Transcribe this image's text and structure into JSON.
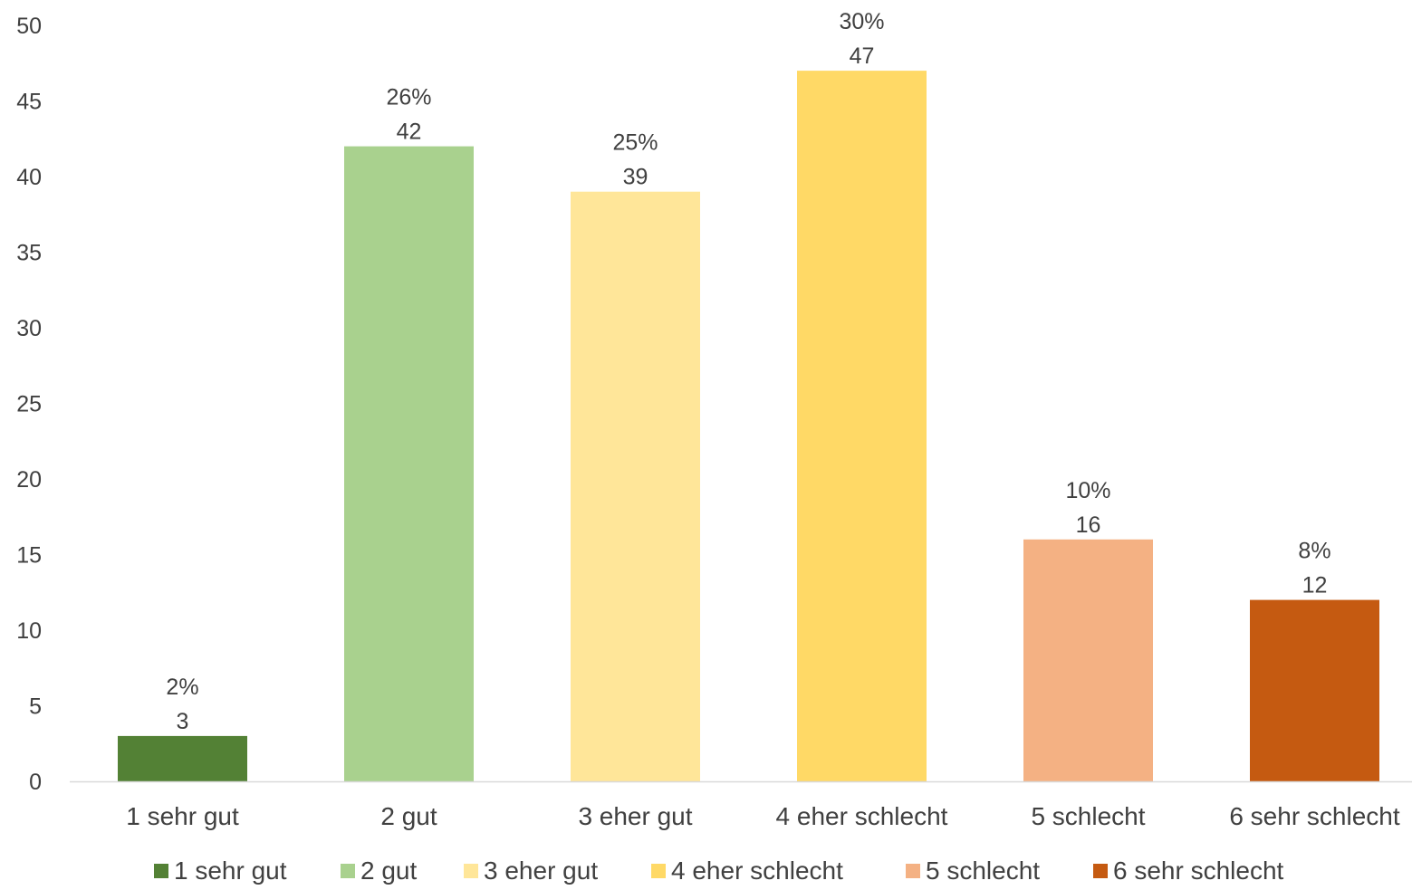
{
  "chart_data": {
    "type": "bar",
    "title": "",
    "xlabel": "",
    "ylabel": "",
    "ylim": [
      0,
      50
    ],
    "yticks": [
      0,
      5,
      10,
      15,
      20,
      25,
      30,
      35,
      40,
      45,
      50
    ],
    "categories": [
      "1 sehr gut",
      "2 gut",
      "3 eher gut",
      "4 eher schlecht",
      "5 schlecht",
      "6 sehr schlecht"
    ],
    "values": [
      3,
      42,
      39,
      47,
      16,
      12
    ],
    "percent_labels": [
      "2%",
      "26%",
      "25%",
      "30%",
      "10%",
      "8%"
    ],
    "colors": [
      "#538135",
      "#a9d18e",
      "#ffe699",
      "#ffd966",
      "#f4b183",
      "#c55a11"
    ],
    "grid": false,
    "legend": {
      "position": "bottom",
      "entries": [
        "1 sehr gut",
        "2 gut",
        "3 eher gut",
        "4 eher schlecht",
        "5 schlecht",
        "6 sehr schlecht"
      ]
    },
    "text_color": "#404040",
    "axis_color": "#d9d9d9"
  }
}
